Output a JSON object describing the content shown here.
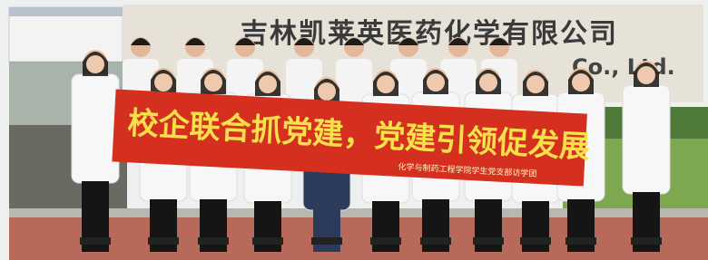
{
  "sign": {
    "chinese": "吉林凯莱英医药化学有限公司",
    "english": "Co., Ltd."
  },
  "banner": {
    "slogan": "校企联合抓党建，党建引领促发展",
    "subtitle": "化学与制药工程学院学生党支部访学团"
  }
}
